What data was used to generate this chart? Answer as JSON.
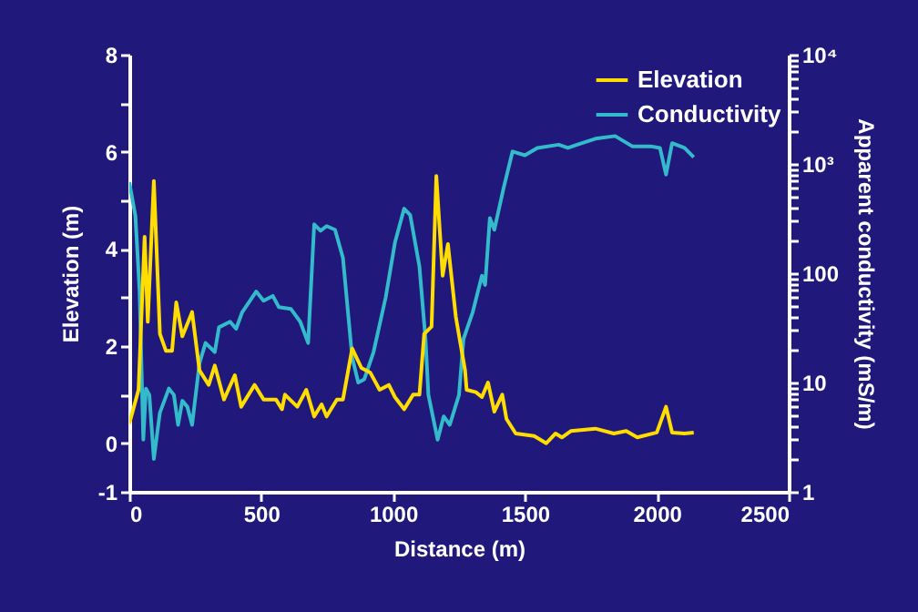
{
  "chart_data": {
    "type": "line",
    "xlabel": "Distance (m)",
    "ylabel": "Elevation (m)",
    "y2label": "Apparent conductivity (mS/m)",
    "legend": "top right",
    "log": "y2",
    "xlim": [
      0,
      2500
    ],
    "xticks": [
      0,
      500,
      1000,
      1500,
      2000,
      2500
    ],
    "ylim": [
      -1,
      8
    ],
    "yticks": [
      {
        "value": -1,
        "label": "-1"
      },
      0,
      {
        "value": 1,
        "label": null
      },
      2,
      {
        "value": 3,
        "label": null
      },
      4,
      {
        "value": 5,
        "label": null
      },
      6,
      {
        "value": 7,
        "label": null
      },
      8
    ],
    "y2lim": [
      1,
      10000
    ],
    "y2ticks": [
      1,
      {
        "value": 2,
        "label": null
      },
      {
        "value": 3,
        "label": null
      },
      {
        "value": 4,
        "label": null
      },
      {
        "value": 5,
        "label": null
      },
      {
        "value": 6,
        "label": null
      },
      {
        "value": 7,
        "label": null
      },
      {
        "value": 8,
        "label": null
      },
      {
        "value": 9,
        "label": null
      },
      10,
      {
        "value": 20,
        "label": null
      },
      {
        "value": 30,
        "label": null
      },
      {
        "value": 40,
        "label": null
      },
      {
        "value": 50,
        "label": null
      },
      {
        "value": 60,
        "label": null
      },
      {
        "value": 70,
        "label": null
      },
      {
        "value": 80,
        "label": null
      },
      {
        "value": 90,
        "label": null
      },
      100,
      {
        "value": 200,
        "label": null
      },
      {
        "value": 300,
        "label": null
      },
      {
        "value": 400,
        "label": null
      },
      {
        "value": 500,
        "label": null
      },
      {
        "value": 600,
        "label": null
      },
      {
        "value": 700,
        "label": null
      },
      {
        "value": 800,
        "label": null
      },
      {
        "value": 900,
        "label": null
      },
      {
        "value": 1000,
        "label": "10³"
      },
      {
        "value": 2000,
        "label": null
      },
      {
        "value": 3000,
        "label": null
      },
      {
        "value": 4000,
        "label": null
      },
      {
        "value": 5000,
        "label": null
      },
      {
        "value": 6000,
        "label": null
      },
      {
        "value": 7000,
        "label": null
      },
      {
        "value": 8000,
        "label": null
      },
      {
        "value": 9000,
        "label": null
      },
      {
        "value": 10000,
        "label": "10⁴"
      }
    ],
    "series": [
      {
        "name": "Elevation",
        "color": "#ffdd00",
        "x": [
          0,
          35,
          58,
          70,
          93,
          116,
          139,
          162,
          178,
          201,
          238,
          266,
          301,
          324,
          359,
          400,
          424,
          475,
          509,
          556,
          579,
          590,
          637,
          671,
          701,
          729,
          748,
          787,
          810,
          845,
          880,
          914,
          949,
          984,
          1007,
          1042,
          1076,
          1100,
          1118,
          1146,
          1164,
          1188,
          1208,
          1238,
          1273,
          1279,
          1314,
          1337,
          1360,
          1384,
          1414,
          1430,
          1465,
          1535,
          1581,
          1616,
          1640,
          1674,
          1767,
          1837,
          1884,
          1926,
          2000,
          2035,
          2058,
          2105,
          2140
        ],
        "values": [
          0.4,
          1.1,
          4.25,
          2.5,
          5.4,
          2.25,
          1.9,
          1.9,
          2.9,
          2.2,
          2.7,
          1.5,
          1.2,
          1.6,
          0.9,
          1.4,
          0.75,
          1.2,
          0.9,
          0.9,
          0.7,
          1.0,
          0.75,
          1.1,
          0.55,
          0.8,
          0.55,
          0.9,
          0.9,
          1.95,
          1.55,
          1.45,
          1.1,
          1.2,
          0.95,
          0.7,
          1.0,
          1.0,
          2.25,
          2.4,
          5.5,
          3.45,
          4.1,
          2.6,
          1.5,
          1.1,
          1.05,
          0.95,
          1.25,
          0.65,
          1.0,
          0.5,
          0.2,
          0.15,
          0.0,
          0.2,
          0.12,
          0.25,
          0.3,
          0.2,
          0.25,
          0.12,
          0.22,
          0.75,
          0.22,
          0.2,
          0.22
        ]
      },
      {
        "name": "Conductivity",
        "color": "#33bbcc",
        "axis": "y2",
        "x": [
          0,
          23,
          39,
          53,
          63,
          76,
          93,
          116,
          150,
          169,
          185,
          201,
          220,
          238,
          266,
          289,
          324,
          340,
          382,
          405,
          428,
          481,
          509,
          544,
          567,
          613,
          648,
          678,
          701,
          725,
          748,
          780,
          810,
          845,
          868,
          891,
          926,
          972,
          1007,
          1042,
          1065,
          1100,
          1123,
          1134,
          1169,
          1192,
          1215,
          1250,
          1267,
          1302,
          1337,
          1349,
          1367,
          1384,
          1419,
          1453,
          1500,
          1547,
          1628,
          1663,
          1698,
          1767,
          1842,
          1907,
          1977,
          2012,
          2035,
          2058,
          2105,
          2140
        ],
        "values": [
          680,
          335,
          68,
          3.0,
          8.8,
          7.7,
          2.0,
          5.3,
          8.8,
          7.7,
          4.1,
          6.8,
          6.0,
          4.1,
          15,
          23,
          19,
          32,
          36,
          31,
          44,
          68,
          56,
          62,
          49,
          47,
          36,
          23,
          280,
          245,
          270,
          250,
          138,
          17,
          10,
          10.7,
          19,
          60,
          190,
          390,
          340,
          115,
          25,
          7.7,
          3.0,
          4.9,
          4.1,
          7.7,
          25,
          44,
          95,
          78,
          320,
          250,
          600,
          1300,
          1200,
          1400,
          1500,
          1400,
          1500,
          1700,
          1800,
          1450,
          1450,
          1400,
          800,
          1550,
          1400,
          1150
        ]
      }
    ]
  }
}
